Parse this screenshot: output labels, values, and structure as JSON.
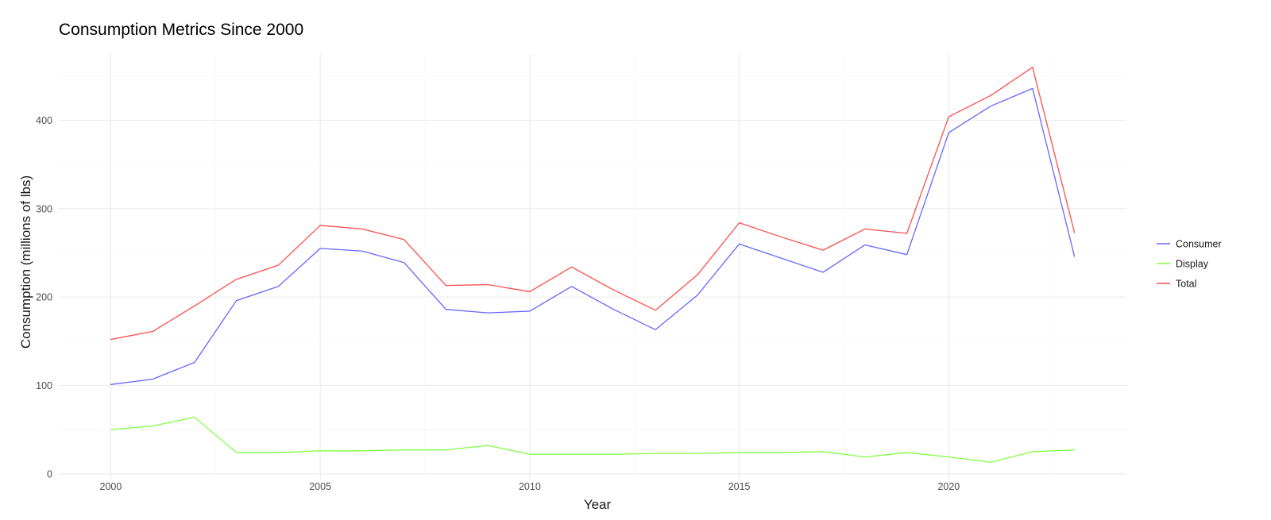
{
  "chart_data": {
    "type": "line",
    "title": "Consumption Metrics Since 2000",
    "xlabel": "Year",
    "ylabel": "Consumption (millions of lbs)",
    "x": [
      2000,
      2001,
      2002,
      2003,
      2004,
      2005,
      2006,
      2007,
      2008,
      2009,
      2010,
      2011,
      2012,
      2013,
      2014,
      2015,
      2016,
      2017,
      2018,
      2019,
      2020,
      2021,
      2022,
      2023
    ],
    "xlim": [
      1998.76,
      2024.24
    ],
    "ylim": [
      -6.5,
      475
    ],
    "x_ticks": [
      2000,
      2005,
      2010,
      2015,
      2020
    ],
    "x_tick_labels": [
      "2000",
      "2005",
      "2010",
      "2015",
      "2020"
    ],
    "y_ticks": [
      0,
      100,
      200,
      300,
      400
    ],
    "y_tick_labels": [
      "0",
      "100",
      "200",
      "300",
      "400"
    ],
    "grid": true,
    "legend_position": "right",
    "series": [
      {
        "name": "Consumer",
        "color": "#6666FF",
        "values": [
          101,
          107,
          126,
          196,
          212,
          255,
          252,
          239,
          186,
          182,
          184,
          212,
          186,
          163,
          202,
          260,
          244,
          228,
          259,
          248,
          386,
          416,
          436,
          246
        ]
      },
      {
        "name": "Display",
        "color": "#80FF40",
        "values": [
          50,
          54,
          64,
          24,
          24,
          26,
          26,
          27,
          27,
          32,
          22,
          22,
          22,
          23,
          23,
          24,
          24,
          25,
          19,
          24,
          19,
          13,
          25,
          27
        ]
      },
      {
        "name": "Total",
        "color": "#FF4D4D",
        "values": [
          152,
          161,
          190,
          220,
          236,
          281,
          277,
          265,
          213,
          214,
          206,
          234,
          208,
          185,
          225,
          284,
          268,
          253,
          277,
          272,
          404,
          428,
          460,
          273
        ]
      }
    ]
  }
}
